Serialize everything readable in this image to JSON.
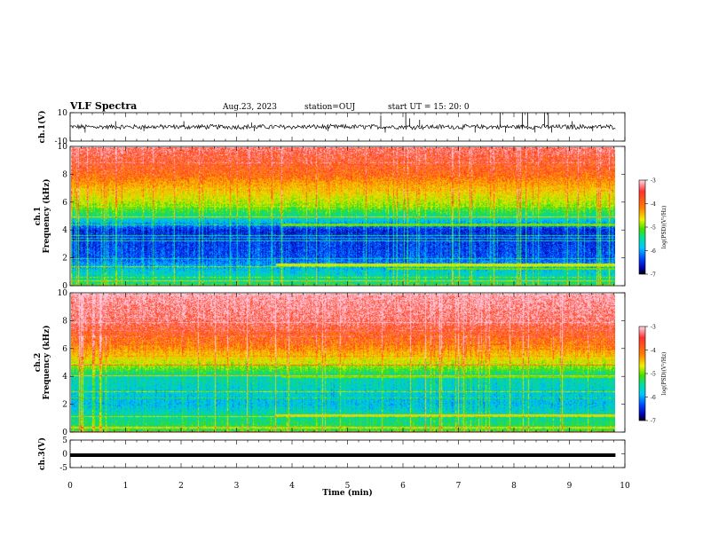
{
  "header": {
    "title": "VLF Spectra",
    "date": "Aug.23, 2023",
    "station": "station=OUJ",
    "start": "start  UT =   15: 20: 0"
  },
  "colors": {
    "colormap": [
      "#000000",
      "#0000aa",
      "#0040ff",
      "#00c8ff",
      "#00e0a0",
      "#40e000",
      "#d0f000",
      "#ffc000",
      "#ff4020",
      "#ffd8e8"
    ]
  },
  "chart_data": [
    {
      "type": "line",
      "name": "ch.1 waveform",
      "ylabel": "ch.1(V)",
      "ylim": [
        -10,
        10
      ],
      "yticks": [
        "10",
        "-10"
      ],
      "x_range_min": [
        0,
        9.83
      ],
      "baseline_v": 0,
      "noise_band_v": [
        -1.5,
        1.5
      ],
      "spikes": [
        {
          "t": 0.27,
          "v": -4
        },
        {
          "t": 0.82,
          "v": 4
        },
        {
          "t": 1.33,
          "v": -3
        },
        {
          "t": 2.05,
          "v": 4
        },
        {
          "t": 3.32,
          "v": -3
        },
        {
          "t": 3.27,
          "v": 3
        },
        {
          "t": 4.65,
          "v": -3
        },
        {
          "t": 5.6,
          "v": 8
        },
        {
          "t": 5.68,
          "v": -4
        },
        {
          "t": 6.05,
          "v": 10
        },
        {
          "t": 6.12,
          "v": 6
        },
        {
          "t": 6.3,
          "v": 5
        },
        {
          "t": 7.3,
          "v": -4
        },
        {
          "t": 7.75,
          "v": 10
        },
        {
          "t": 7.85,
          "v": -4
        },
        {
          "t": 8.15,
          "v": 10
        },
        {
          "t": 8.25,
          "v": 10
        },
        {
          "t": 8.38,
          "v": -4
        },
        {
          "t": 8.55,
          "v": 10
        },
        {
          "t": 8.62,
          "v": 10
        },
        {
          "t": 8.68,
          "v": -4
        },
        {
          "t": 9.05,
          "v": 4
        },
        {
          "t": 9.42,
          "v": -3
        }
      ]
    },
    {
      "type": "heatmap",
      "name": "ch.1 spectrogram",
      "ylabel": "ch.1\nFrequency (kHz)",
      "ylim": [
        0,
        10
      ],
      "yticks": [
        "0",
        "2",
        "4",
        "6",
        "8",
        "10"
      ],
      "x_range_min": [
        0,
        9.83
      ],
      "zlabel": "log(PSD)(V²/Hz)",
      "zlim": [
        -7,
        -3
      ],
      "zticks": [
        "-3",
        "-4",
        "-5",
        "-6",
        "-7"
      ],
      "level_profile": [
        {
          "f": 10,
          "z": -3.3
        },
        {
          "f": 8,
          "z": -3.7
        },
        {
          "f": 6,
          "z": -4.6
        },
        {
          "f": 5,
          "z": -5.3
        },
        {
          "f": 4,
          "z": -6.4
        },
        {
          "f": 2,
          "z": -6.2
        },
        {
          "f": 1,
          "z": -5.6
        },
        {
          "f": 0,
          "z": -5.2
        }
      ],
      "emission_bands": [
        {
          "f_khz": 1.5,
          "t_from_min": 3.7,
          "t_to_min": 9.83,
          "z": -4.5
        },
        {
          "f_khz": 1.2,
          "t_from_min": 5.7,
          "t_to_min": 9.83,
          "z": -4.8
        },
        {
          "f_khz": 4.4,
          "t_from_min": 3.8,
          "t_to_min": 9.83,
          "z": -4.8
        }
      ]
    },
    {
      "type": "heatmap",
      "name": "ch.2 spectrogram",
      "ylabel": "ch.2\nFrequency (kHz)",
      "ylim": [
        0,
        10
      ],
      "yticks": [
        "0",
        "2",
        "4",
        "6",
        "8",
        "10"
      ],
      "x_range_min": [
        0,
        9.83
      ],
      "zlabel": "log(PSD)(V²/Hz)",
      "zlim": [
        -7,
        -3
      ],
      "zticks": [
        "-3",
        "-4",
        "-5",
        "-6",
        "-7"
      ],
      "level_profile": [
        {
          "f": 10,
          "z": -3.1
        },
        {
          "f": 8,
          "z": -3.3
        },
        {
          "f": 6,
          "z": -3.9
        },
        {
          "f": 5,
          "z": -4.5
        },
        {
          "f": 4,
          "z": -5.4
        },
        {
          "f": 2,
          "z": -5.7
        },
        {
          "f": 1,
          "z": -5.3
        },
        {
          "f": 0,
          "z": -5.0
        }
      ],
      "emission_bands": [
        {
          "f_khz": 1.2,
          "t_from_min": 3.7,
          "t_to_min": 9.83,
          "z": -4.3
        },
        {
          "f_khz": 4.0,
          "t_from_min": 3.8,
          "t_to_min": 9.83,
          "z": -4.8
        }
      ]
    },
    {
      "type": "line",
      "name": "ch.3 waveform",
      "ylabel": "ch.3(V)",
      "ylim": [
        -5,
        5
      ],
      "yticks": [
        "5",
        "0",
        "-5"
      ],
      "x_range_min": [
        0,
        9.83
      ],
      "baseline_v": -0.5
    }
  ],
  "xaxis": {
    "label": "Time (min)",
    "ticks": [
      "0",
      "1",
      "2",
      "3",
      "4",
      "5",
      "6",
      "7",
      "8",
      "9",
      "10"
    ],
    "xlim": [
      0,
      10
    ]
  }
}
